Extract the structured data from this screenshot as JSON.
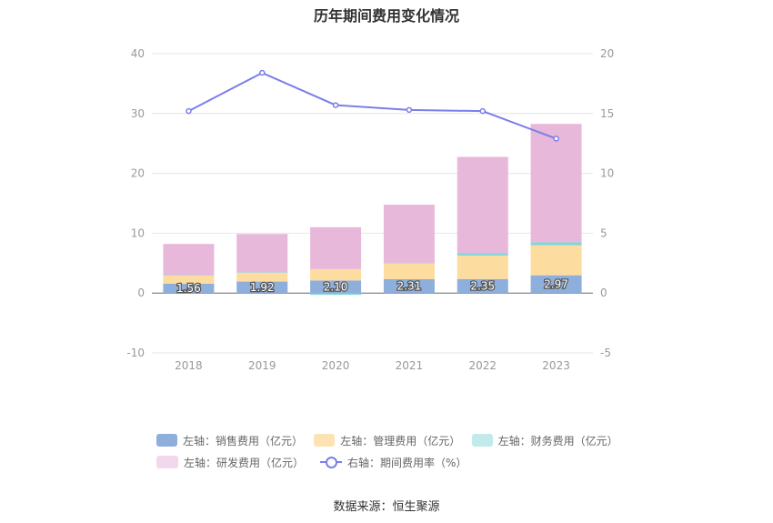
{
  "chart_data": {
    "type": "bar",
    "title": "历年期间费用变化情况",
    "categories": [
      "2018",
      "2019",
      "2020",
      "2021",
      "2022",
      "2023"
    ],
    "left_axis": {
      "ylim": [
        -10,
        40
      ],
      "ticks": [
        "-10",
        "0",
        "10",
        "20",
        "30",
        "40"
      ]
    },
    "right_axis": {
      "ylim": [
        -5,
        20
      ],
      "ticks": [
        "-5",
        "0",
        "5",
        "10",
        "15",
        "20"
      ]
    },
    "series": [
      {
        "name": "左轴：销售费用（亿元）",
        "type": "bar",
        "axis": "left",
        "color": "#8eaedc",
        "values": [
          1.56,
          1.92,
          2.1,
          2.31,
          2.35,
          2.97
        ],
        "labels": [
          "1.56",
          "1.92",
          "2.10",
          "2.31",
          "2.35",
          "2.97"
        ]
      },
      {
        "name": "左轴：管理费用（亿元）",
        "type": "bar",
        "axis": "left",
        "color": "#fddca0",
        "values": [
          1.4,
          1.5,
          1.9,
          2.7,
          3.9,
          5.0
        ]
      },
      {
        "name": "左轴：财务费用（亿元）",
        "type": "bar",
        "axis": "left",
        "color": "#84d6d8",
        "values": [
          0.05,
          0.05,
          -0.3,
          0.05,
          0.4,
          0.5
        ]
      },
      {
        "name": "左轴：研发费用（亿元）",
        "type": "bar",
        "axis": "left",
        "color": "#e7b8da",
        "values": [
          5.2,
          6.4,
          7.0,
          9.7,
          16.1,
          19.8
        ]
      },
      {
        "name": "右轴：期间费用率（%）",
        "type": "line",
        "axis": "right",
        "color": "#7b7fe8",
        "values": [
          15.2,
          18.4,
          15.7,
          15.3,
          15.2,
          12.9
        ]
      }
    ],
    "grid": true,
    "legend_position": "bottom"
  },
  "legend": {
    "row1": [
      "左轴：销售费用（亿元）",
      "左轴：管理费用（亿元）",
      "左轴：财务费用（亿元）"
    ],
    "row2": [
      "左轴：研发费用（亿元）",
      "右轴：期间费用率（%）"
    ]
  },
  "legend_colors": [
    "#8eaedc",
    "#fddca0",
    "#84d6d8",
    "#e7b8da"
  ],
  "source": "数据来源：恒生聚源"
}
